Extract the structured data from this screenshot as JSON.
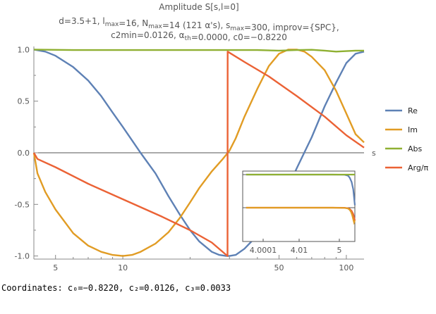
{
  "chart_data": {
    "type": "line",
    "title_lines": [
      "Amplitude S[s,l=0]",
      "d=3.5+1, l_max=16, N_max=14 (121 α's), s_max=300, improv={SPC},",
      "c2min=0.0126, α_th=0.0000, c0=−0.8220"
    ],
    "xlabel": "s",
    "ylabel": "",
    "x_scale": "log",
    "xlim": [
      4,
      120
    ],
    "ylim": [
      -1.03,
      1.03
    ],
    "xticks": [
      {
        "v": 5,
        "label": "5"
      },
      {
        "v": 10,
        "label": "10"
      },
      {
        "v": 50,
        "label": "50"
      },
      {
        "v": 100,
        "label": "100"
      }
    ],
    "yticks": [
      {
        "v": -1,
        "label": "-1.0"
      },
      {
        "v": -0.5,
        "label": "-0.5"
      },
      {
        "v": 0,
        "label": "0.0"
      },
      {
        "v": 0.5,
        "label": "0.5"
      },
      {
        "v": 1,
        "label": "1.0"
      }
    ],
    "series": [
      {
        "name": "Re",
        "color": "#5e81b5",
        "x": [
          4,
          4.5,
          5,
          6,
          7,
          8,
          9,
          10,
          11,
          12,
          14,
          16,
          18,
          20,
          22,
          25,
          27,
          29,
          30,
          32,
          35,
          40,
          45,
          50,
          55,
          60,
          70,
          80,
          90,
          100,
          110,
          120
        ],
        "y": [
          1.0,
          0.98,
          0.94,
          0.83,
          0.7,
          0.55,
          0.39,
          0.25,
          0.12,
          0.0,
          -0.2,
          -0.42,
          -0.6,
          -0.75,
          -0.86,
          -0.96,
          -0.99,
          -1.0,
          -1.0,
          -0.99,
          -0.93,
          -0.8,
          -0.65,
          -0.48,
          -0.33,
          -0.15,
          0.15,
          0.45,
          0.68,
          0.87,
          0.96,
          0.98
        ]
      },
      {
        "name": "Im",
        "color": "#e19c24",
        "x": [
          4,
          4.15,
          4.5,
          5,
          6,
          7,
          8,
          9,
          10,
          11,
          12,
          14,
          16,
          18,
          20,
          22,
          25,
          28,
          29,
          30,
          32,
          35,
          40,
          45,
          50,
          55,
          60,
          65,
          70,
          80,
          90,
          100,
          110,
          120
        ],
        "y": [
          0.0,
          -0.2,
          -0.38,
          -0.55,
          -0.78,
          -0.9,
          -0.96,
          -0.99,
          -1.0,
          -0.99,
          -0.96,
          -0.88,
          -0.77,
          -0.63,
          -0.48,
          -0.34,
          -0.18,
          -0.06,
          -0.02,
          0.02,
          0.14,
          0.35,
          0.62,
          0.84,
          0.96,
          1.0,
          1.0,
          0.98,
          0.93,
          0.8,
          0.6,
          0.38,
          0.18,
          0.1
        ]
      },
      {
        "name": "Abs",
        "color": "#8fb032",
        "x": [
          4,
          6,
          10,
          15,
          20,
          25,
          30,
          40,
          50,
          60,
          70,
          80,
          90,
          100,
          110,
          120
        ],
        "y": [
          1.0,
          0.995,
          0.995,
          0.995,
          0.995,
          0.995,
          0.995,
          0.995,
          0.99,
          0.995,
          0.998,
          0.99,
          0.98,
          0.985,
          0.99,
          0.99
        ]
      },
      {
        "name": "Arg/π",
        "color": "#eb6235",
        "x": [
          4,
          4.15,
          5,
          7,
          10,
          15,
          20,
          25,
          29.4,
          29.45,
          35,
          45,
          60,
          80,
          100,
          120
        ],
        "y": [
          0.0,
          -0.06,
          -0.14,
          -0.3,
          -0.45,
          -0.62,
          -0.75,
          -0.87,
          -1.0,
          0.98,
          0.88,
          0.74,
          0.55,
          0.35,
          0.17,
          0.05
        ]
      }
    ],
    "legend_position": "right",
    "inset": {
      "x_scale": "log-log",
      "xticks": [
        {
          "v": 4.0001,
          "label": "4.0001"
        },
        {
          "v": 4.01,
          "label": "4.01"
        },
        {
          "v": 5,
          "label": "5"
        }
      ],
      "series": [
        {
          "name": "Re",
          "color": "#5e81b5",
          "x": [
            4.000001,
            4.1,
            4.5,
            4.8,
            5.0,
            5.3,
            5.6,
            6.0
          ],
          "y": [
            1.0,
            1.0,
            0.999,
            0.99,
            0.97,
            0.93,
            0.86,
            0.71
          ]
        },
        {
          "name": "Abs",
          "color": "#8fb032",
          "x": [
            4.000001,
            4.5,
            5.0,
            5.5,
            6.0
          ],
          "y": [
            1.0,
            1.0,
            1.0,
            1.0,
            1.0
          ]
        },
        {
          "name": "Arg/π",
          "color": "#eb6235",
          "x": [
            4.000001,
            4.1,
            4.5,
            4.8,
            5.0,
            5.3,
            5.6,
            6.0
          ],
          "y": [
            0.0,
            0.0,
            -0.001,
            -0.005,
            -0.012,
            -0.03,
            -0.06,
            -0.12
          ]
        },
        {
          "name": "Im",
          "color": "#e19c24",
          "x": [
            4.000001,
            4.1,
            4.5,
            4.8,
            5.0,
            5.2,
            5.4,
            5.6,
            5.8,
            6.0
          ],
          "y": [
            0.0,
            0.0,
            -0.002,
            -0.008,
            -0.02,
            -0.04,
            -0.07,
            -0.11,
            -0.14,
            -0.12
          ]
        }
      ]
    }
  },
  "coordinates_text": "Coordinates: c₀=−0.8220, c₂=0.0126, c₃=0.0033"
}
